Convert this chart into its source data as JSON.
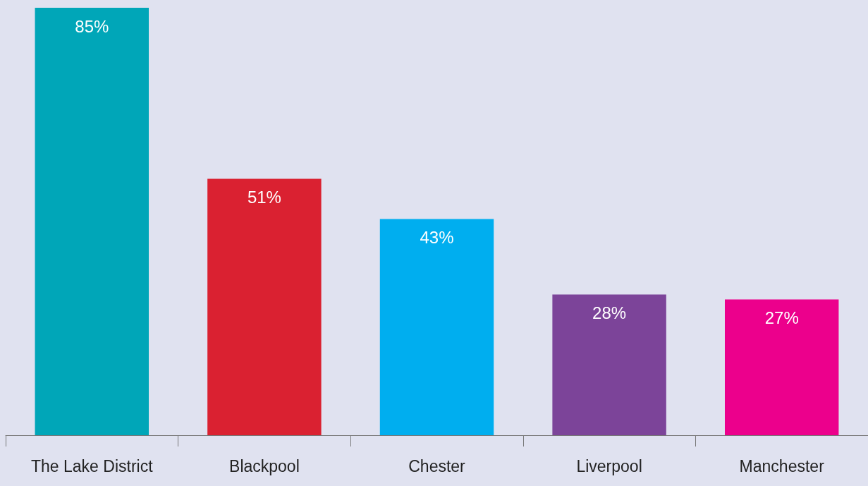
{
  "chart_data": {
    "type": "bar",
    "categories": [
      "The Lake District",
      "Blackpool",
      "Chester",
      "Liverpool",
      "Manchester"
    ],
    "values": [
      85,
      51,
      43,
      28,
      27
    ],
    "colors": [
      "#00a6b8",
      "#da2131",
      "#00aeef",
      "#7c4499",
      "#ec008c"
    ],
    "value_labels": [
      "85%",
      "51%",
      "43%",
      "28%",
      "27%"
    ]
  }
}
